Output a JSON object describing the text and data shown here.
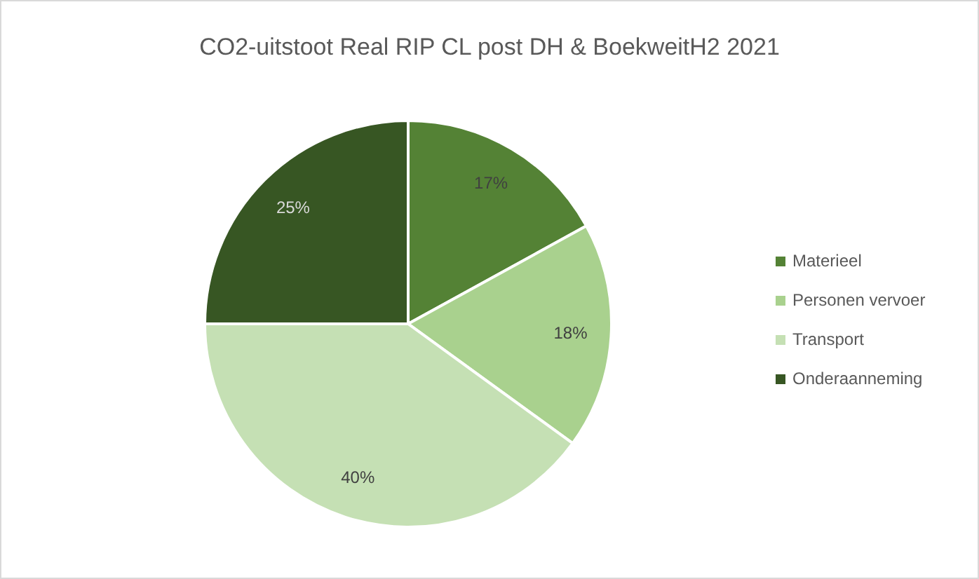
{
  "chart_data": {
    "type": "pie",
    "title": "CO2-uitstoot Real RIP CL post DH & BoekweitH2 2021",
    "categories": [
      "Materieel",
      "Personen vervoer",
      "Transport",
      "Onderaanneming"
    ],
    "values": [
      17,
      18,
      40,
      25
    ],
    "colors": [
      "#548235",
      "#a9d18e",
      "#c5e0b4",
      "#375623"
    ],
    "value_labels": [
      "17%",
      "18%",
      "40%",
      "25%"
    ],
    "legend": "right"
  }
}
